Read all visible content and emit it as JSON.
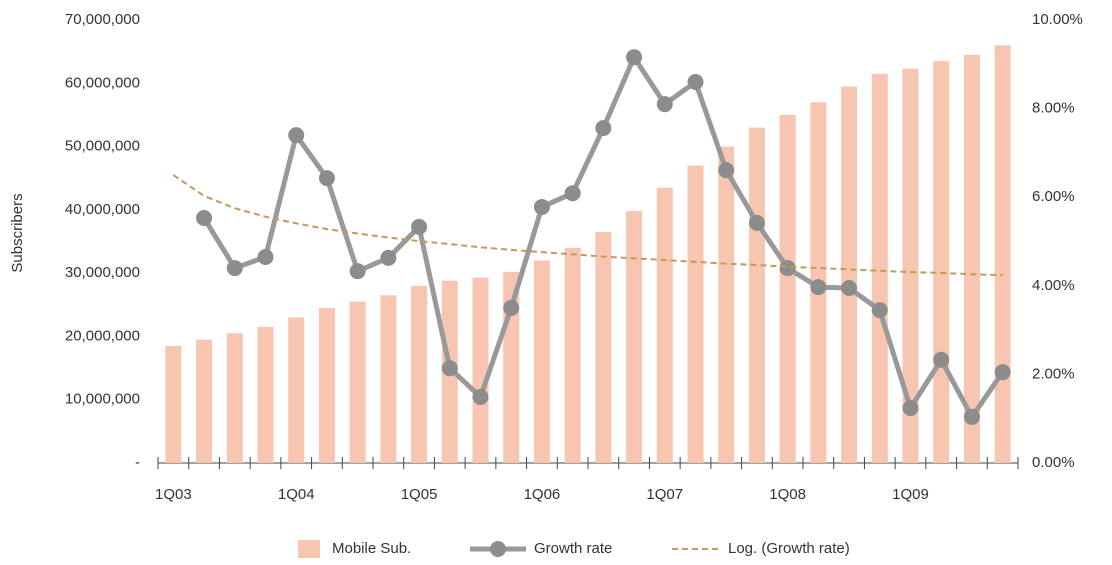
{
  "chart_data": {
    "type": "bar",
    "ylabel": "Subscribers",
    "categories": [
      "1Q03",
      null,
      null,
      null,
      "1Q04",
      null,
      null,
      null,
      "1Q05",
      null,
      null,
      null,
      "1Q06",
      null,
      null,
      null,
      "1Q07",
      null,
      null,
      null,
      "1Q08",
      null,
      null,
      null,
      "1Q09",
      null,
      null,
      null
    ],
    "series": [
      {
        "name": "Mobile Sub.",
        "type": "bar",
        "color": "#f8c6b0",
        "values": [
          18500000,
          19500000,
          20500000,
          21500000,
          23000000,
          24500000,
          25500000,
          26500000,
          28000000,
          28800000,
          29300000,
          30200000,
          32000000,
          34000000,
          36500000,
          39800000,
          43500000,
          47000000,
          50000000,
          53000000,
          55000000,
          57000000,
          59500000,
          61500000,
          62300000,
          63500000,
          64500000,
          66000000
        ]
      },
      {
        "name": "Growth rate",
        "type": "line",
        "axis": "y2",
        "color": "#999999",
        "marker": true,
        "values": [
          null,
          5.53,
          4.4,
          4.65,
          7.4,
          6.43,
          4.33,
          4.63,
          5.33,
          2.14,
          1.49,
          3.5,
          5.78,
          6.09,
          7.56,
          9.16,
          8.1,
          8.6,
          6.61,
          5.42,
          4.4,
          3.97,
          3.95,
          3.45,
          1.24,
          2.33,
          1.04,
          2.05
        ]
      },
      {
        "name": "Log. (Growth rate)",
        "type": "line",
        "axis": "y2",
        "color": "#c49a5c",
        "dashed": true,
        "values": [
          6.5,
          6.03,
          5.75,
          5.56,
          5.41,
          5.28,
          5.18,
          5.09,
          5.01,
          4.94,
          4.87,
          4.81,
          4.76,
          4.71,
          4.66,
          4.62,
          4.58,
          4.54,
          4.5,
          4.47,
          4.43,
          4.4,
          4.37,
          4.34,
          4.31,
          4.29,
          4.26,
          4.24
        ]
      }
    ],
    "ylim": [
      0,
      70000000
    ],
    "yticks": [
      {
        "value": 0,
        "label": "-"
      },
      {
        "value": 10000000,
        "label": "10,000,000"
      },
      {
        "value": 20000000,
        "label": "20,000,000"
      },
      {
        "value": 30000000,
        "label": "30,000,000"
      },
      {
        "value": 40000000,
        "label": "40,000,000"
      },
      {
        "value": 50000000,
        "label": "50,000,000"
      },
      {
        "value": 60000000,
        "label": "60,000,000"
      },
      {
        "value": 70000000,
        "label": "70,000,000"
      }
    ],
    "y2lim": [
      0,
      10
    ],
    "y2ticks": [
      {
        "value": 0,
        "label": "0.00%"
      },
      {
        "value": 2,
        "label": "2.00%"
      },
      {
        "value": 4,
        "label": "4.00%"
      },
      {
        "value": 6,
        "label": "6.00%"
      },
      {
        "value": 8,
        "label": "8.00%"
      },
      {
        "value": 10,
        "label": "10.00%"
      }
    ],
    "grid": false,
    "legend": "bottom"
  }
}
